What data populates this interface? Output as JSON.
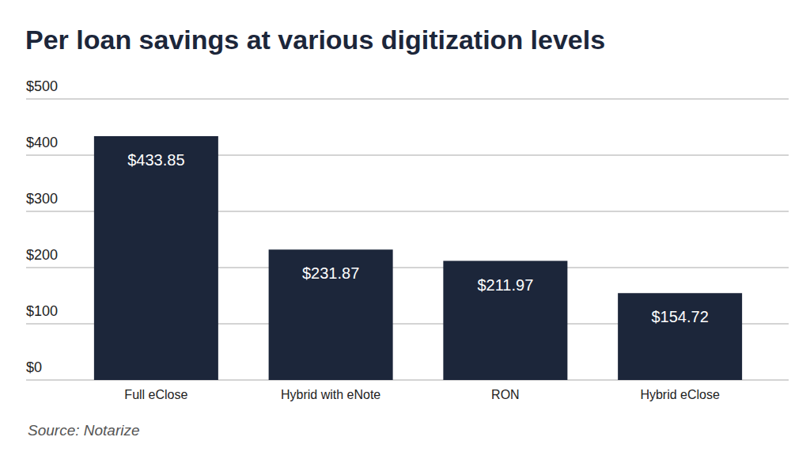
{
  "chart_data": {
    "type": "bar",
    "title": "Per loan savings at various digitization levels",
    "categories": [
      "Full eClose",
      "Hybrid with eNote",
      "RON",
      "Hybrid eClose"
    ],
    "values": [
      433.85,
      231.87,
      211.97,
      154.72
    ],
    "value_labels": [
      "$433.85",
      "$231.87",
      "$211.97",
      "$154.72"
    ],
    "color": "#1c263a",
    "ylim": [
      0,
      500
    ],
    "yticks": [
      {
        "value": 0,
        "label": "$0"
      },
      {
        "value": 100,
        "label": "$100"
      },
      {
        "value": 200,
        "label": "$200"
      },
      {
        "value": 300,
        "label": "$300"
      },
      {
        "value": 400,
        "label": "$400"
      },
      {
        "value": 500,
        "label": "$500"
      }
    ],
    "grid": true,
    "data_labels": true,
    "source": "Source: Notarize"
  }
}
